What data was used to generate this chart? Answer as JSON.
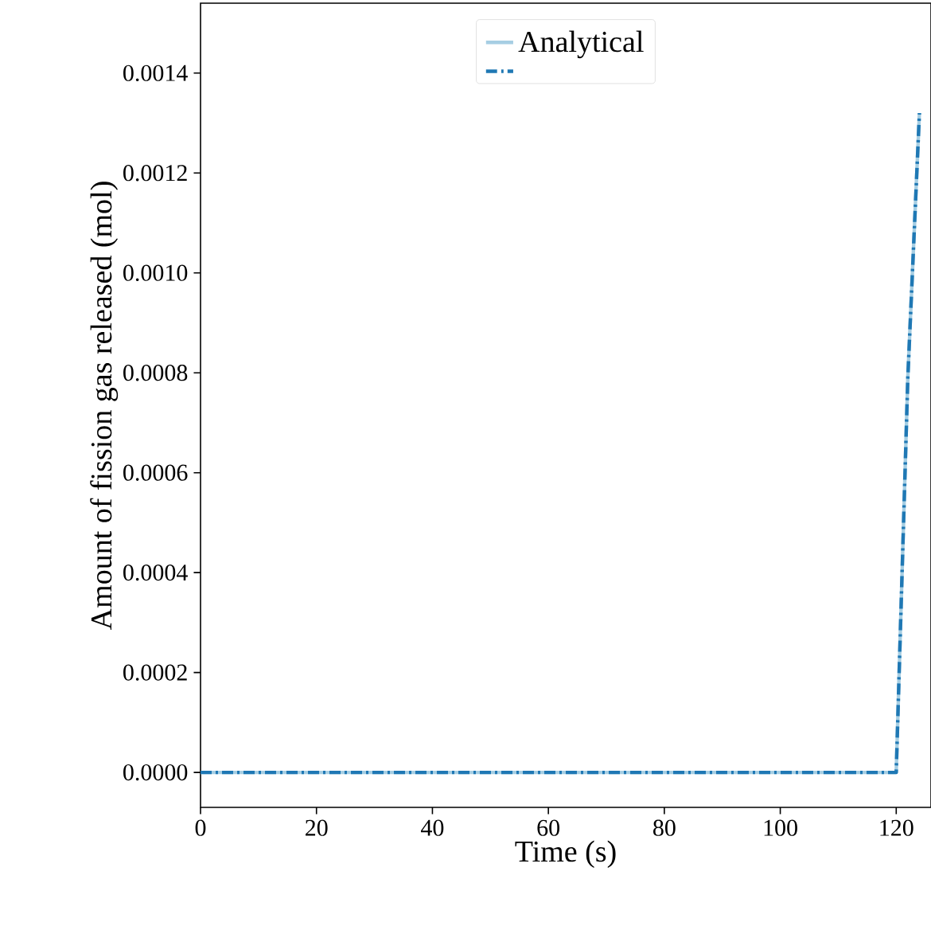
{
  "chart_data": {
    "type": "line",
    "xlabel": "Time (s)",
    "ylabel": "Amount of fission gas released (mol)",
    "xlim": [
      0,
      126
    ],
    "ylim": [
      -7e-05,
      0.00154
    ],
    "xticks": [
      0,
      20,
      40,
      60,
      80,
      100,
      120
    ],
    "yticks": [
      {
        "value": 0,
        "label": "0.0000"
      },
      {
        "value": 0.0002,
        "label": "0.0002"
      },
      {
        "value": 0.0004,
        "label": "0.0004"
      },
      {
        "value": 0.0006,
        "label": "0.0006"
      },
      {
        "value": 0.0008,
        "label": "0.0008"
      },
      {
        "value": 0.001,
        "label": "0.0010"
      },
      {
        "value": 0.0012,
        "label": "0.0012"
      },
      {
        "value": 0.0014,
        "label": "0.0014"
      }
    ],
    "series": [
      {
        "name": "Analytical",
        "color": "#a6cee3",
        "line_style": "solid",
        "x": [
          0,
          120,
          122,
          124
        ],
        "values": [
          0,
          0,
          0.00079,
          0.00132
        ]
      },
      {
        "color": "#1f78b4",
        "line_style": "dashdot",
        "x": [
          0,
          120,
          122,
          124
        ],
        "values": [
          0,
          0,
          0.00079,
          0.00132
        ]
      }
    ],
    "legend": "top",
    "marker": "none",
    "grid": false
  }
}
